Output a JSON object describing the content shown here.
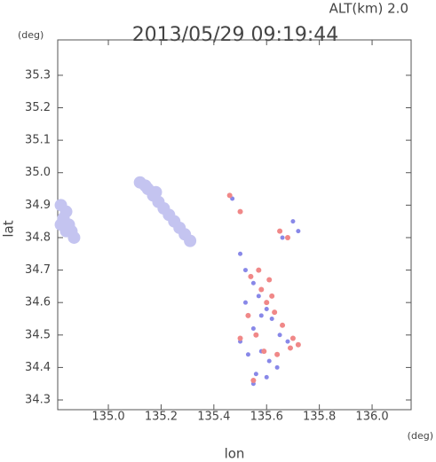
{
  "chart_data": {
    "type": "scatter",
    "title": "2013/05/29 09:19:44",
    "subtitle": "ALT(km) 2.0",
    "y_unit": "(deg)",
    "x_unit": "(deg)",
    "x_label": "lon",
    "y_label": "lat",
    "xlim": [
      134.808,
      136.148
    ],
    "ylim": [
      34.27,
      35.409
    ],
    "xticks": [
      {
        "value": 135,
        "label": "135.0"
      },
      135.2,
      135.4,
      135.6,
      135.8,
      {
        "value": 136,
        "label": "136.0"
      }
    ],
    "yticks": [
      34.3,
      34.4,
      34.5,
      34.6,
      34.7,
      34.8,
      34.9,
      {
        "value": 35,
        "label": "35.0"
      },
      35.1,
      35.2,
      35.3
    ],
    "series": [
      {
        "color": "#c4c4f0",
        "marker_size": 7,
        "x": [
          134.82,
          134.84,
          134.83,
          134.85,
          134.86,
          134.87,
          134.84,
          134.82,
          135.12,
          135.14,
          135.15,
          135.17,
          135.18,
          135.19,
          135.21,
          135.23,
          135.25,
          135.27,
          135.29,
          135.31
        ],
        "y": [
          34.9,
          34.88,
          34.86,
          34.84,
          34.82,
          34.8,
          34.82,
          34.84,
          34.97,
          34.96,
          34.95,
          34.93,
          34.94,
          34.91,
          34.89,
          34.87,
          34.85,
          34.83,
          34.81,
          34.79
        ]
      },
      {
        "color": "#8888e8",
        "marker_size": 2.5,
        "x": [
          135.47,
          135.5,
          135.52,
          135.55,
          135.57,
          135.6,
          135.62,
          135.65,
          135.68,
          135.7,
          135.52,
          135.55,
          135.58,
          135.61,
          135.64,
          135.5,
          135.53,
          135.56,
          135.6,
          135.66,
          135.72,
          135.55,
          135.58
        ],
        "y": [
          34.92,
          34.75,
          34.7,
          34.66,
          34.62,
          34.58,
          34.55,
          34.5,
          34.48,
          34.85,
          34.6,
          34.52,
          34.45,
          34.42,
          34.4,
          34.48,
          34.44,
          34.38,
          34.37,
          34.8,
          34.82,
          34.35,
          34.56
        ]
      },
      {
        "color": "#f08888",
        "marker_size": 3,
        "x": [
          135.46,
          135.5,
          135.54,
          135.58,
          135.6,
          135.63,
          135.66,
          135.7,
          135.72,
          135.56,
          135.59,
          135.62,
          135.65,
          135.68,
          135.5,
          135.53,
          135.57,
          135.61,
          135.64,
          135.69,
          135.55
        ],
        "y": [
          34.93,
          34.88,
          34.68,
          34.64,
          34.6,
          34.57,
          34.53,
          34.49,
          34.47,
          34.5,
          34.45,
          34.62,
          34.82,
          34.8,
          34.49,
          34.56,
          34.7,
          34.67,
          34.44,
          34.46,
          34.36
        ]
      }
    ]
  }
}
